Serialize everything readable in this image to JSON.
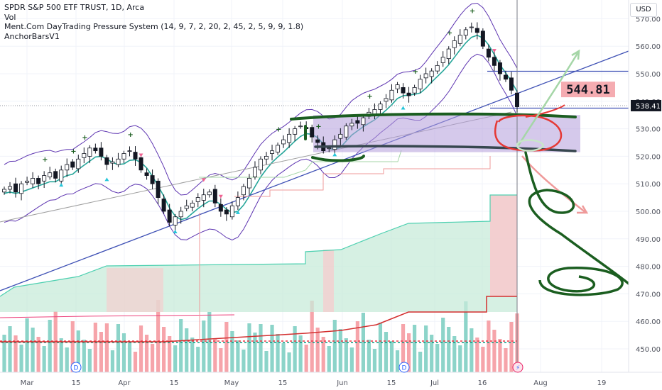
{
  "legend": {
    "symbol_line": "SPDR S&P 500 ETF TRUST, 1D, Arca",
    "vol_line": "Vol",
    "indicator_line": "Ment.Com DayTrading Pressure System (14, 9, 7, 2, 20, 2, 45, 2, 5, 9, 9, 1.8)",
    "anchor_line": "AnchorBarsV1"
  },
  "toolbar": {
    "currency_label": "USD"
  },
  "price_tag": {
    "value": "538.41",
    "color": "#131722"
  },
  "annotation": {
    "text": "544.81",
    "fill": "#f4a3a8"
  },
  "events": {
    "dividend_label": "D",
    "split_label": "⚡"
  },
  "colors": {
    "up": "#089981",
    "down": "#f23645",
    "trend": "#3f51b5",
    "marker": "#1b5e20",
    "zone": "#b39ddb",
    "green_band": "#b2dfdb",
    "pen_green": "#1b5e20",
    "pen_red": "#e53935"
  },
  "chart_data": {
    "type": "candlestick",
    "title": "SPDR S&P 500 ETF TRUST, 1D, Arca",
    "y_axis": {
      "side": "right",
      "ticks": [
        "450.00",
        "460.00",
        "470.00",
        "480.00",
        "490.00",
        "500.00",
        "510.00",
        "520.00",
        "530.00",
        "540.00",
        "550.00",
        "560.00",
        "570.00"
      ],
      "range": [
        446,
        575
      ]
    },
    "x_axis": {
      "ticks": [
        "Mar",
        "15",
        "Apr",
        "15",
        "May",
        "15",
        "Jun",
        "15",
        "Jul",
        "16",
        "Aug",
        "19"
      ]
    },
    "last_price": 538.41,
    "horizontal_levels": [
      550.9,
      537.5
    ],
    "note_value": 544.81,
    "grid": true,
    "legend_position": "top-left",
    "closes_approx": [
      508,
      509,
      507,
      510,
      511,
      512,
      510,
      513,
      514,
      512,
      515,
      517,
      516,
      519,
      521,
      523,
      522,
      520,
      517,
      518,
      519,
      521,
      522,
      519,
      515,
      513,
      510,
      505,
      500,
      496,
      498,
      500,
      502,
      503,
      505,
      506,
      507,
      503,
      500,
      499,
      502,
      505,
      509,
      512,
      516,
      519,
      520,
      522,
      524,
      526,
      528,
      530,
      531,
      530,
      527,
      525,
      522,
      523,
      526,
      528,
      531,
      532,
      532,
      534,
      536,
      537,
      539,
      541,
      544,
      546,
      543,
      542,
      545,
      548,
      550,
      551,
      553,
      556,
      559,
      562,
      564,
      566,
      567,
      565,
      560,
      556,
      553,
      550,
      548,
      544,
      538
    ]
  }
}
